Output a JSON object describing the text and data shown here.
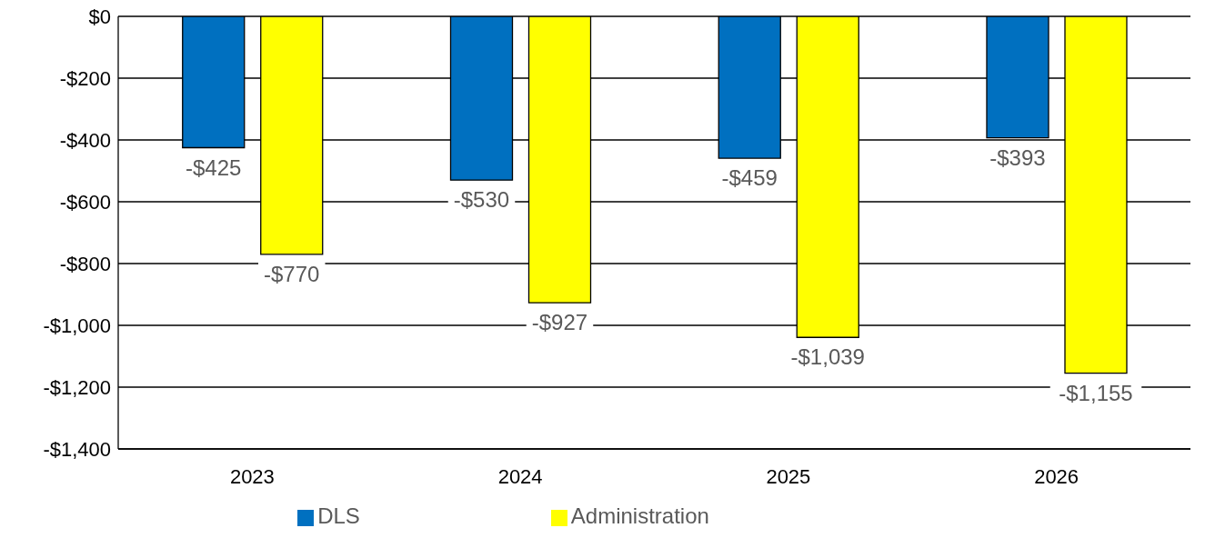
{
  "chart_data": {
    "type": "bar",
    "categories": [
      "2023",
      "2024",
      "2025",
      "2026"
    ],
    "series": [
      {
        "name": "DLS",
        "color": "#0070c0",
        "values": [
          -425,
          -530,
          -459,
          -393
        ],
        "value_labels": [
          "-$425",
          "-$530",
          "-$459",
          "-$393"
        ]
      },
      {
        "name": "Administration",
        "color": "#ffff00",
        "values": [
          -770,
          -927,
          -1039,
          -1155
        ],
        "value_labels": [
          "-$770",
          "-$927",
          "-$1,039",
          "-$1,155"
        ]
      }
    ],
    "ylim": [
      -1400,
      0
    ],
    "yticks": [
      {
        "value": 0,
        "label": "$0"
      },
      {
        "value": -200,
        "label": "-$200"
      },
      {
        "value": -400,
        "label": "-$400"
      },
      {
        "value": -600,
        "label": "-$600"
      },
      {
        "value": -800,
        "label": "-$800"
      },
      {
        "value": -1000,
        "label": "-$1,000"
      },
      {
        "value": -1200,
        "label": "-$1,200"
      },
      {
        "value": -1400,
        "label": "-$1,400"
      }
    ],
    "grid": "y",
    "legend": "bottom"
  }
}
